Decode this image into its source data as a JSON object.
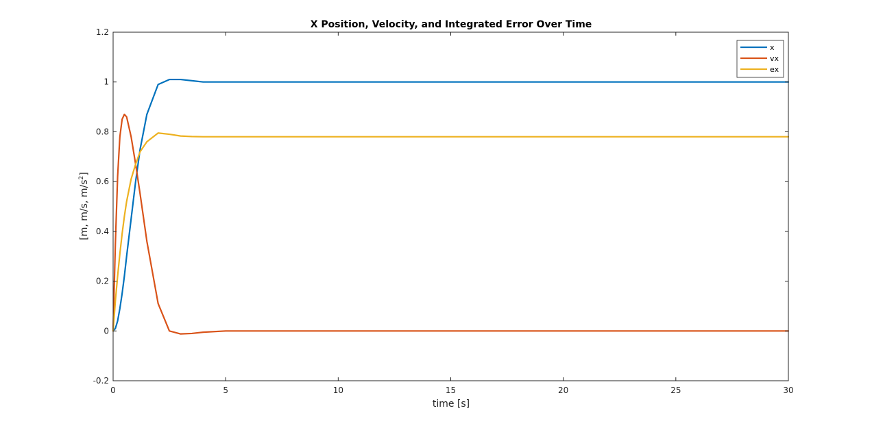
{
  "chart_data": {
    "type": "line",
    "title": "X Position, Velocity, and Integrated Error Over Time",
    "xlabel": "time [s]",
    "ylabel_main": "[m, m/s, m/s",
    "ylabel_sup": "2",
    "ylabel_end": "]",
    "xlim": [
      0,
      30
    ],
    "ylim": [
      -0.2,
      1.2
    ],
    "xticks": [
      0,
      5,
      10,
      15,
      20,
      25,
      30
    ],
    "yticks": [
      -0.2,
      0,
      0.2,
      0.4,
      0.6,
      0.8,
      1.0,
      1.2
    ],
    "xtick_labels": [
      "0",
      "5",
      "10",
      "15",
      "20",
      "25",
      "30"
    ],
    "ytick_labels": [
      "-0.2",
      "0",
      "0.2",
      "0.4",
      "0.6",
      "0.8",
      "1",
      "1.2"
    ],
    "grid": false,
    "legend_position": "top-right",
    "x": [
      0,
      0.1,
      0.2,
      0.3,
      0.4,
      0.5,
      0.6,
      0.8,
      1.0,
      1.2,
      1.5,
      2.0,
      2.5,
      3.0,
      3.5,
      4.0,
      5.0,
      6.0,
      8.0,
      10,
      15,
      20,
      25,
      30
    ],
    "series": [
      {
        "name": "x",
        "color": "#0072bd",
        "values": [
          0,
          0.01,
          0.04,
          0.09,
          0.15,
          0.22,
          0.3,
          0.45,
          0.6,
          0.73,
          0.87,
          0.99,
          1.01,
          1.01,
          1.005,
          1.0,
          1.0,
          1.0,
          1.0,
          1.0,
          1.0,
          1.0,
          1.0,
          1.0
        ]
      },
      {
        "name": "vx",
        "color": "#d95319",
        "values": [
          0,
          0.35,
          0.62,
          0.78,
          0.85,
          0.87,
          0.86,
          0.78,
          0.67,
          0.55,
          0.36,
          0.11,
          0.0,
          -0.012,
          -0.01,
          -0.005,
          0,
          0,
          0,
          0,
          0,
          0,
          0,
          0
        ]
      },
      {
        "name": "ex",
        "color": "#edb120",
        "values": [
          0,
          0.12,
          0.22,
          0.31,
          0.39,
          0.46,
          0.52,
          0.61,
          0.67,
          0.72,
          0.76,
          0.795,
          0.79,
          0.783,
          0.781,
          0.78,
          0.78,
          0.78,
          0.78,
          0.78,
          0.78,
          0.78,
          0.78,
          0.78
        ]
      }
    ]
  }
}
